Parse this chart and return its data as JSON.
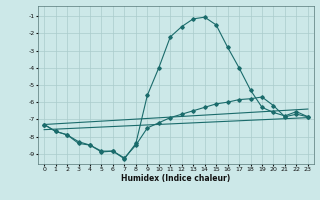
{
  "xlabel": "Humidex (Indice chaleur)",
  "background_color": "#cce8e8",
  "grid_color": "#aacccc",
  "line_color": "#1a6b6b",
  "xlim": [
    -0.5,
    23.5
  ],
  "ylim": [
    -9.6,
    -0.4
  ],
  "yticks": [
    -1,
    -2,
    -3,
    -4,
    -5,
    -6,
    -7,
    -8,
    -9
  ],
  "xticks": [
    0,
    1,
    2,
    3,
    4,
    5,
    6,
    7,
    8,
    9,
    10,
    11,
    12,
    13,
    14,
    15,
    16,
    17,
    18,
    19,
    20,
    21,
    22,
    23
  ],
  "line1_x": [
    0,
    1,
    2,
    3,
    4,
    5,
    6,
    7,
    8,
    9,
    10,
    11,
    12,
    13,
    14,
    15,
    16,
    17,
    18,
    19,
    20,
    21,
    22,
    23
  ],
  "line1_y": [
    -7.3,
    -7.7,
    -7.9,
    -8.4,
    -8.5,
    -8.9,
    -8.85,
    -9.3,
    -8.4,
    -5.6,
    -4.0,
    -2.2,
    -1.6,
    -1.15,
    -1.05,
    -1.5,
    -2.8,
    -4.0,
    -5.3,
    -6.3,
    -6.6,
    -6.8,
    -6.55,
    -6.85
  ],
  "line2_x": [
    0,
    1,
    2,
    3,
    4,
    5,
    6,
    7,
    8,
    9,
    10,
    11,
    12,
    13,
    14,
    15,
    16,
    17,
    18,
    19,
    20,
    21,
    22,
    23
  ],
  "line2_y": [
    -7.3,
    -7.7,
    -7.9,
    -8.3,
    -8.5,
    -8.85,
    -8.85,
    -9.25,
    -8.5,
    -7.5,
    -7.2,
    -6.9,
    -6.7,
    -6.5,
    -6.3,
    -6.1,
    -6.0,
    -5.85,
    -5.8,
    -5.7,
    -6.2,
    -6.85,
    -6.7,
    -6.85
  ],
  "line3_x": [
    0,
    23
  ],
  "line3_y": [
    -7.3,
    -6.4
  ],
  "line4_x": [
    0,
    23
  ],
  "line4_y": [
    -7.6,
    -6.9
  ]
}
